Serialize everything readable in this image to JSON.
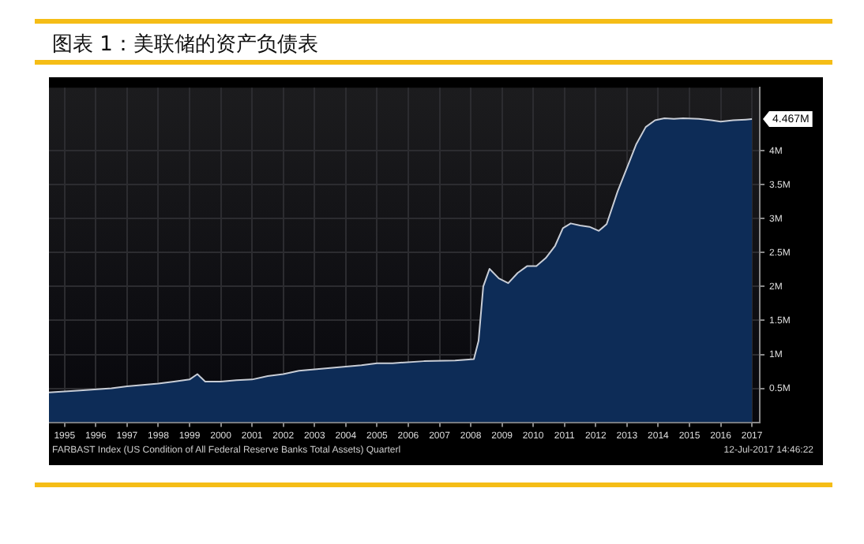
{
  "chart_data": {
    "type": "area",
    "title": "图表 1：美联储的资产负债表",
    "x": [
      1995.0,
      1996.0,
      1997.0,
      1997.5,
      1998.5,
      1999.0,
      1999.5,
      1999.75,
      2000.0,
      2000.5,
      2001.0,
      2001.5,
      2002.0,
      2002.5,
      2003.0,
      2004.0,
      2005.0,
      2005.5,
      2006.0,
      2007.0,
      2008.0,
      2008.6,
      2008.75,
      2008.9,
      2009.1,
      2009.4,
      2009.7,
      2010.0,
      2010.3,
      2010.6,
      2010.9,
      2011.2,
      2011.45,
      2011.7,
      2012.0,
      2012.3,
      2012.6,
      2012.85,
      2013.2,
      2013.5,
      2013.8,
      2014.1,
      2014.4,
      2014.7,
      2015.0,
      2015.3,
      2015.8,
      2016.2,
      2016.5,
      2016.9,
      2017.3,
      2017.5
    ],
    "series": [
      {
        "color": "#0d2c57",
        "values": [
          0.44,
          0.47,
          0.5,
          0.53,
          0.57,
          0.6,
          0.63,
          0.71,
          0.6,
          0.6,
          0.62,
          0.63,
          0.68,
          0.71,
          0.76,
          0.8,
          0.84,
          0.87,
          0.87,
          0.9,
          0.91,
          0.93,
          1.2,
          2.0,
          2.26,
          2.12,
          2.05,
          2.2,
          2.3,
          2.3,
          2.42,
          2.6,
          2.86,
          2.93,
          2.9,
          2.88,
          2.82,
          2.92,
          3.4,
          3.75,
          4.1,
          4.35,
          4.45,
          4.48,
          4.47,
          4.48,
          4.47,
          4.45,
          4.43,
          4.45,
          4.46,
          4.467
        ]
      }
    ],
    "xlim": [
      1995.0,
      2017.75
    ],
    "xticks": [
      {
        "value": 1995.5,
        "label": "1995"
      },
      {
        "value": 1996.5,
        "label": "1996"
      },
      {
        "value": 1997.5,
        "label": "1997"
      },
      {
        "value": 1998.5,
        "label": "1998"
      },
      {
        "value": 1999.5,
        "label": "1999"
      },
      {
        "value": 2000.5,
        "label": "2000"
      },
      {
        "value": 2001.5,
        "label": "2001"
      },
      {
        "value": 2002.5,
        "label": "2002"
      },
      {
        "value": 2003.5,
        "label": "2003"
      },
      {
        "value": 2004.5,
        "label": "2004"
      },
      {
        "value": 2005.5,
        "label": "2005"
      },
      {
        "value": 2006.5,
        "label": "2006"
      },
      {
        "value": 2007.5,
        "label": "2007"
      },
      {
        "value": 2008.5,
        "label": "2008"
      },
      {
        "value": 2009.5,
        "label": "2009"
      },
      {
        "value": 2010.5,
        "label": "2010"
      },
      {
        "value": 2011.5,
        "label": "2011"
      },
      {
        "value": 2012.5,
        "label": "2012"
      },
      {
        "value": 2013.5,
        "label": "2013"
      },
      {
        "value": 2014.5,
        "label": "2014"
      },
      {
        "value": 2015.5,
        "label": "2015"
      },
      {
        "value": 2016.5,
        "label": "2016"
      },
      {
        "value": 2017.5,
        "label": "2017"
      }
    ],
    "ylim": [
      0,
      4.93
    ],
    "yticks": [
      {
        "value": 0.5,
        "label": "0.5M"
      },
      {
        "value": 1,
        "label": "1M"
      },
      {
        "value": 1.5,
        "label": "1.5M"
      },
      {
        "value": 2,
        "label": "2M"
      },
      {
        "value": 2.5,
        "label": "2.5M"
      },
      {
        "value": 3,
        "label": "3M"
      },
      {
        "value": 3.5,
        "label": "3.5M"
      },
      {
        "value": 4,
        "label": "4M"
      }
    ],
    "grid": true,
    "annotations": [
      "4.467M",
      "FARBAST Index (US Condition of All Federal Reserve Banks Total Assets)  Quarterl",
      "12-Jul-2017 14:46:22"
    ]
  }
}
